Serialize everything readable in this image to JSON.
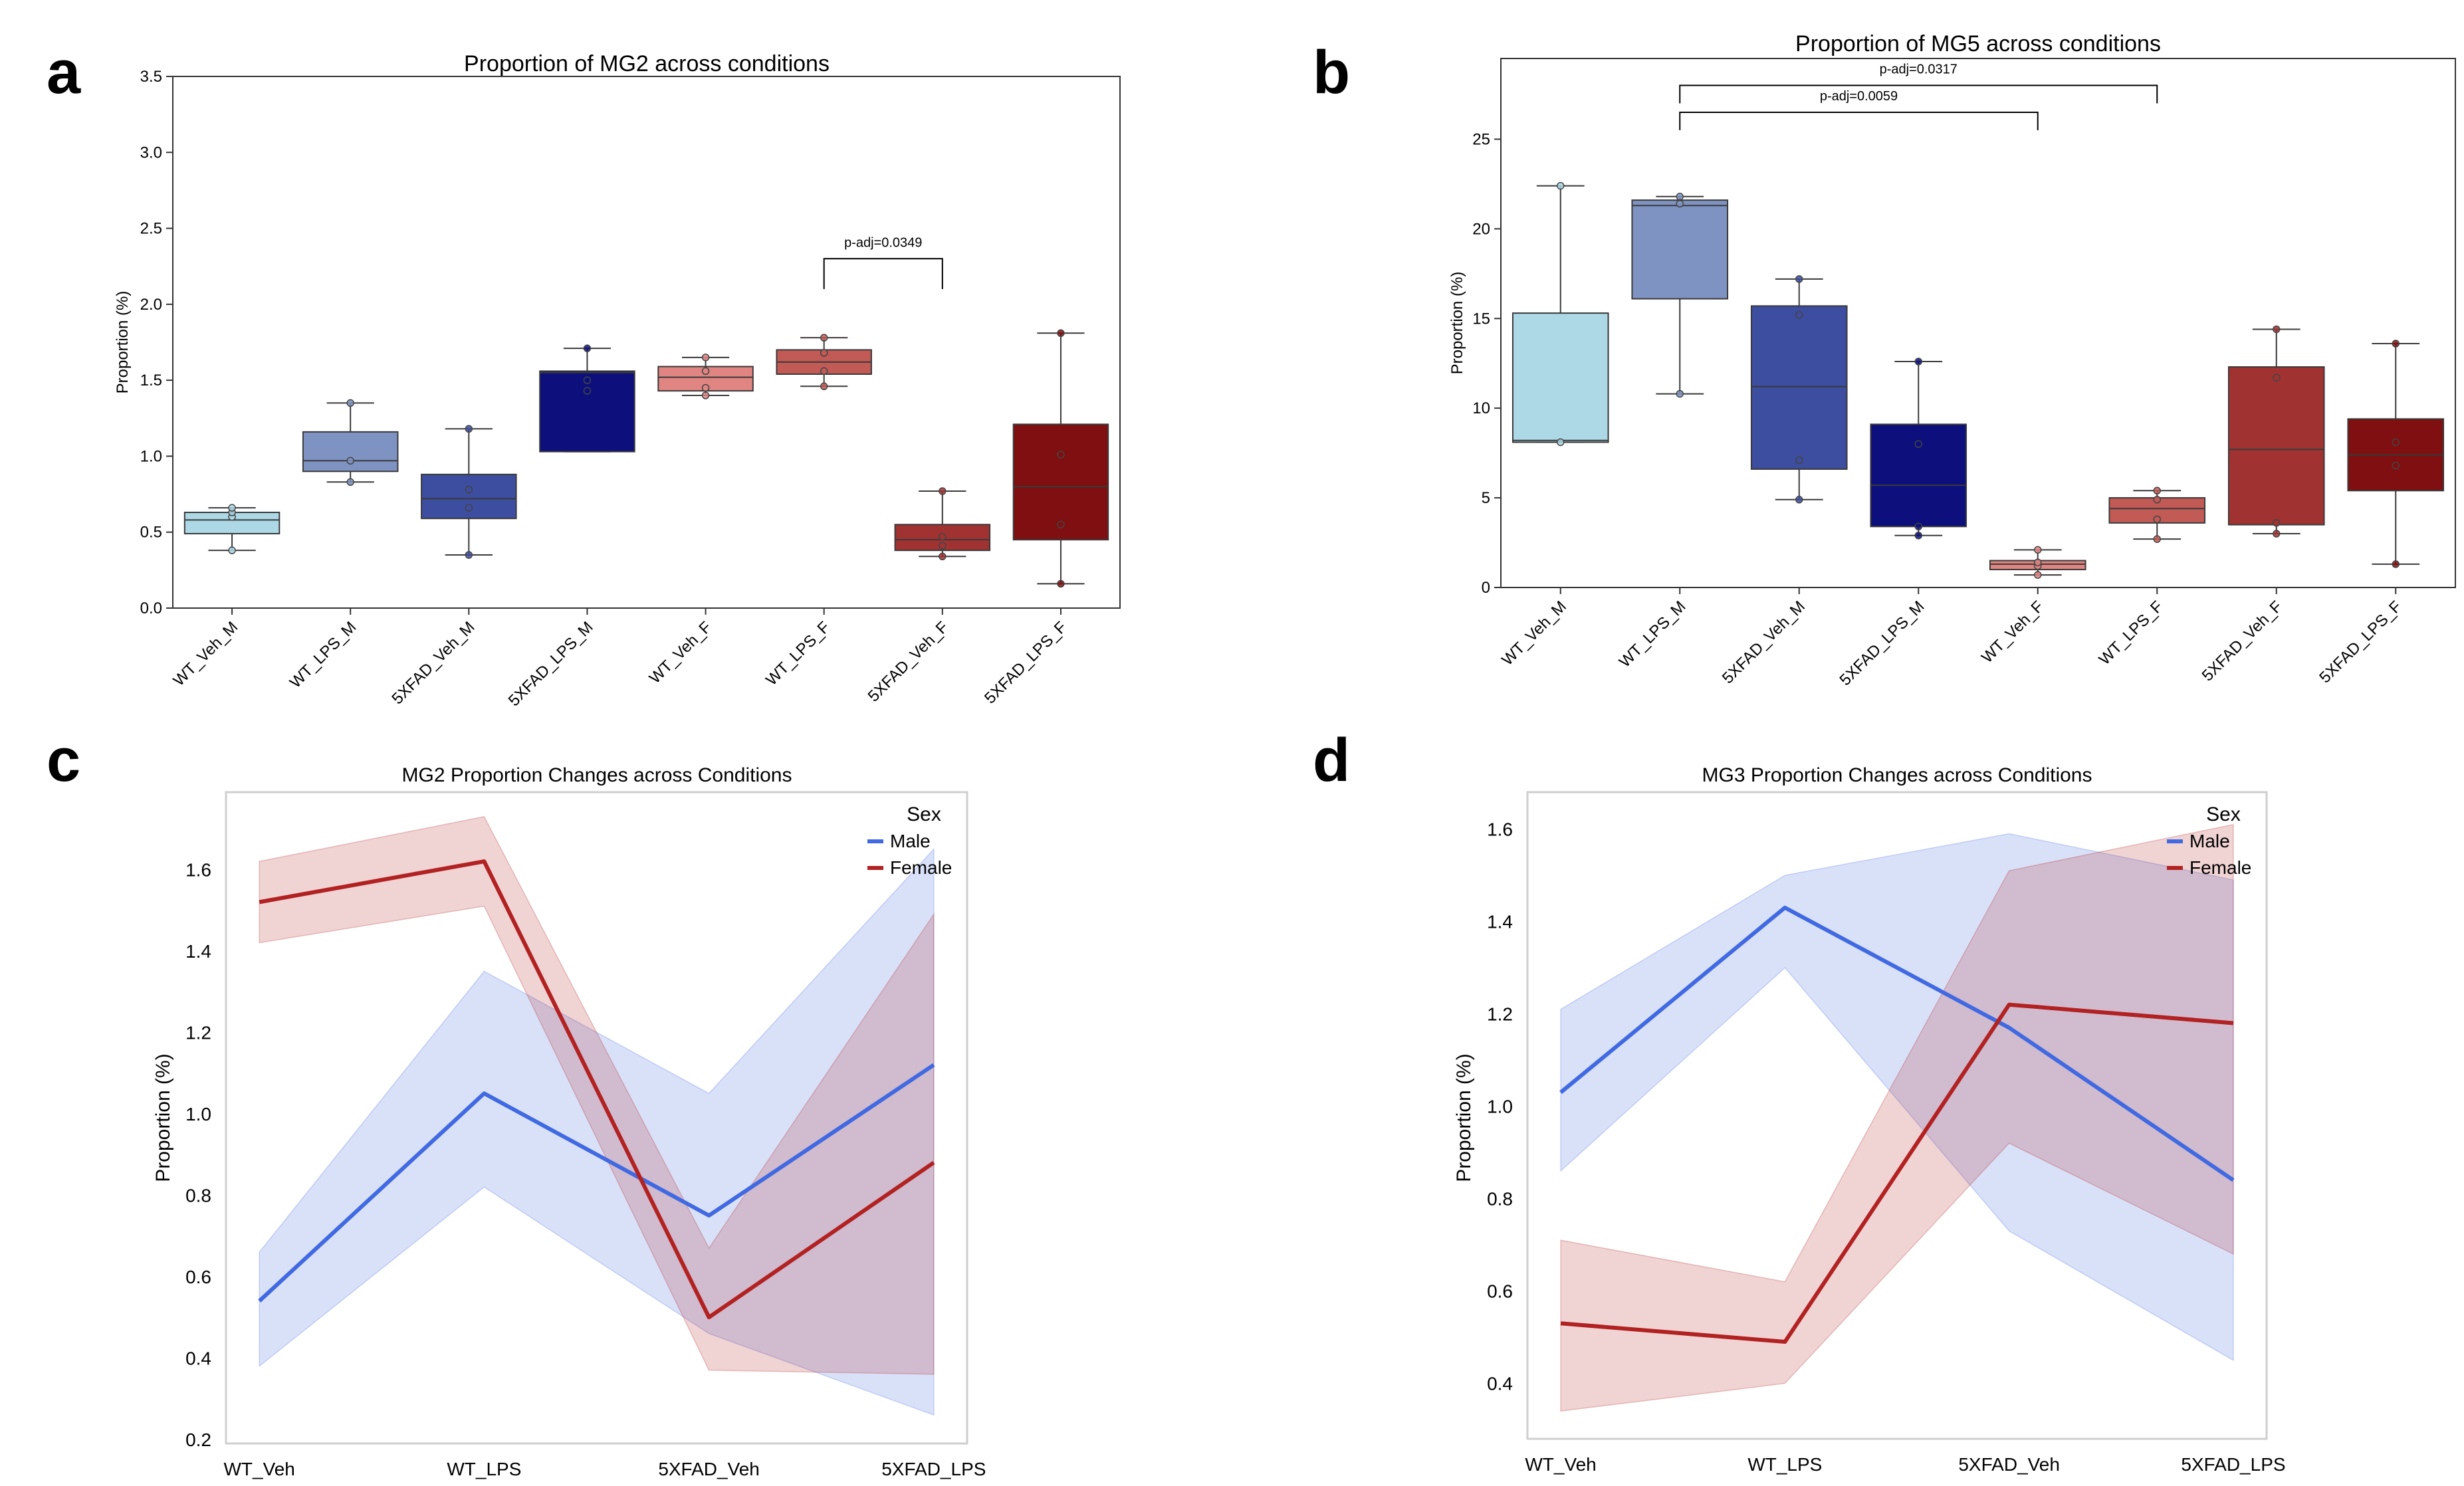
{
  "panels": {
    "a": {
      "letter": "a",
      "chart_data": {
        "type": "box",
        "title": "Proportion of MG2 across conditions",
        "xlabel": "",
        "ylabel": "Proportion (%)",
        "ylim": [
          0,
          3.5
        ],
        "yticks": [
          0.0,
          0.5,
          1.0,
          1.5,
          2.0,
          2.5,
          3.0,
          3.5
        ],
        "ytick_labels": [
          "0.0",
          "0.5",
          "1.0",
          "1.5",
          "2.0",
          "2.5",
          "3.0",
          "3.5"
        ],
        "categories": [
          "WT_Veh_M",
          "WT_LPS_M",
          "5XFAD_Veh_M",
          "5XFAD_LPS_M",
          "WT_Veh_F",
          "WT_LPS_F",
          "5XFAD_Veh_F",
          "5XFAD_LPS_F"
        ],
        "colors": [
          "#add8e6",
          "#7f93c2",
          "#3d4da0",
          "#0c0f7c",
          "#e08582",
          "#c25a56",
          "#a03232",
          "#7f0f10"
        ],
        "boxes": [
          {
            "q1": 0.49,
            "median": 0.58,
            "q3": 0.63,
            "whisker_low": 0.38,
            "whisker_high": 0.66,
            "points": [
              0.38,
              0.6,
              0.63,
              0.66
            ]
          },
          {
            "q1": 0.9,
            "median": 0.97,
            "q3": 1.16,
            "whisker_low": 0.83,
            "whisker_high": 1.35,
            "points": [
              0.83,
              0.97,
              1.35
            ]
          },
          {
            "q1": 0.59,
            "median": 0.72,
            "q3": 0.88,
            "whisker_low": 0.35,
            "whisker_high": 1.18,
            "points": [
              0.35,
              0.66,
              0.78,
              1.18
            ]
          },
          {
            "q1": 1.03,
            "median": 1.55,
            "q3": 1.56,
            "whisker_low": 1.03,
            "whisker_high": 1.71,
            "points": [
              1.43,
              1.5,
              1.71
            ]
          },
          {
            "q1": 1.43,
            "median": 1.52,
            "q3": 1.59,
            "whisker_low": 1.4,
            "whisker_high": 1.65,
            "points": [
              1.4,
              1.45,
              1.56,
              1.65
            ]
          },
          {
            "q1": 1.54,
            "median": 1.62,
            "q3": 1.7,
            "whisker_low": 1.46,
            "whisker_high": 1.78,
            "points": [
              1.46,
              1.56,
              1.68,
              1.78
            ]
          },
          {
            "q1": 0.38,
            "median": 0.45,
            "q3": 0.55,
            "whisker_low": 0.34,
            "whisker_high": 0.77,
            "points": [
              0.34,
              0.41,
              0.47,
              0.77
            ]
          },
          {
            "q1": 0.45,
            "median": 0.8,
            "q3": 1.21,
            "whisker_low": 0.16,
            "whisker_high": 1.81,
            "points": [
              0.16,
              0.55,
              1.01,
              1.81
            ]
          }
        ],
        "annotations": [
          {
            "label": "p-adj=0.0349",
            "from": "WT_LPS_F",
            "to": "5XFAD_Veh_F",
            "y": 2.3,
            "drop": 0.2
          }
        ]
      }
    },
    "b": {
      "letter": "b",
      "chart_data": {
        "type": "box",
        "title": "Proportion of MG5 across conditions",
        "xlabel": "",
        "ylabel": "Proportion (%)",
        "ylim": [
          0,
          29.5
        ],
        "yticks": [
          0,
          5,
          10,
          15,
          20,
          25
        ],
        "ytick_labels": [
          "0",
          "5",
          "10",
          "15",
          "20",
          "25"
        ],
        "categories": [
          "WT_Veh_M",
          "WT_LPS_M",
          "5XFAD_Veh_M",
          "5XFAD_LPS_M",
          "WT_Veh_F",
          "WT_LPS_F",
          "5XFAD_Veh_F",
          "5XFAD_LPS_F"
        ],
        "colors": [
          "#add8e6",
          "#7f93c2",
          "#3d4da0",
          "#0c0f7c",
          "#e08582",
          "#c25a56",
          "#a03232",
          "#7f0f10"
        ],
        "boxes": [
          {
            "q1": 8.1,
            "median": 8.2,
            "q3": 15.3,
            "whisker_low": 8.1,
            "whisker_high": 22.4,
            "points": [
              8.1,
              22.4
            ]
          },
          {
            "q1": 16.1,
            "median": 21.3,
            "q3": 21.6,
            "whisker_low": 10.8,
            "whisker_high": 21.8,
            "points": [
              10.8,
              21.4,
              21.8
            ]
          },
          {
            "q1": 6.6,
            "median": 11.2,
            "q3": 15.7,
            "whisker_low": 4.9,
            "whisker_high": 17.2,
            "points": [
              4.9,
              7.1,
              15.2,
              17.2
            ]
          },
          {
            "q1": 3.4,
            "median": 5.7,
            "q3": 9.1,
            "whisker_low": 2.9,
            "whisker_high": 12.6,
            "points": [
              2.9,
              3.4,
              8.0,
              12.6
            ]
          },
          {
            "q1": 1.0,
            "median": 1.3,
            "q3": 1.5,
            "whisker_low": 0.7,
            "whisker_high": 2.1,
            "points": [
              0.7,
              1.2,
              1.4,
              2.1
            ]
          },
          {
            "q1": 3.6,
            "median": 4.4,
            "q3": 5.0,
            "whisker_low": 2.7,
            "whisker_high": 5.4,
            "points": [
              2.7,
              3.8,
              4.9,
              5.4
            ]
          },
          {
            "q1": 3.5,
            "median": 7.7,
            "q3": 12.3,
            "whisker_low": 3.0,
            "whisker_high": 14.4,
            "points": [
              3.0,
              3.6,
              11.7,
              14.4
            ]
          },
          {
            "q1": 5.4,
            "median": 7.4,
            "q3": 9.4,
            "whisker_low": 1.3,
            "whisker_high": 13.6,
            "points": [
              1.3,
              6.8,
              8.1,
              13.6
            ]
          }
        ],
        "annotations": [
          {
            "label": "p-adj=0.0317",
            "from": "WT_LPS_M",
            "to": "WT_LPS_F",
            "y": 28.0,
            "drop": 1.0
          },
          {
            "label": "p-adj=0.0059",
            "from": "WT_LPS_M",
            "to": "WT_Veh_F",
            "y": 26.5,
            "drop": 1.0
          }
        ]
      }
    },
    "c": {
      "letter": "c",
      "chart_data": {
        "type": "line",
        "title": "MG2 Proportion Changes across Conditions",
        "xlabel": "",
        "ylabel": "Proportion (%)",
        "ylim": [
          0.19,
          1.79
        ],
        "yticks": [
          0.2,
          0.4,
          0.6,
          0.8,
          1.0,
          1.2,
          1.4,
          1.6
        ],
        "ytick_labels": [
          "0.2",
          "0.4",
          "0.6",
          "0.8",
          "1.0",
          "1.2",
          "1.4",
          "1.6"
        ],
        "categories": [
          "WT_Veh",
          "WT_LPS",
          "5XFAD_Veh",
          "5XFAD_LPS"
        ],
        "legend": {
          "title": "Sex",
          "placement": "top-right"
        },
        "series": [
          {
            "name": "Male",
            "color": "#4169e1",
            "values": [
              0.54,
              1.05,
              0.75,
              1.12
            ],
            "ci_low": [
              0.38,
              0.82,
              0.46,
              0.26
            ],
            "ci_high": [
              0.66,
              1.35,
              1.05,
              1.65
            ]
          },
          {
            "name": "Female",
            "color": "#b22222",
            "values": [
              1.52,
              1.62,
              0.5,
              0.88
            ],
            "ci_low": [
              1.42,
              1.51,
              0.37,
              0.36
            ],
            "ci_high": [
              1.62,
              1.73,
              0.67,
              1.49
            ]
          }
        ]
      }
    },
    "d": {
      "letter": "d",
      "chart_data": {
        "type": "line",
        "title": "MG3 Proportion Changes across Conditions",
        "xlabel": "",
        "ylabel": "Proportion (%)",
        "ylim": [
          0.28,
          1.68
        ],
        "yticks": [
          0.4,
          0.6,
          0.8,
          1.0,
          1.2,
          1.4,
          1.6
        ],
        "ytick_labels": [
          "0.4",
          "0.6",
          "0.8",
          "1.0",
          "1.2",
          "1.4",
          "1.6"
        ],
        "categories": [
          "WT_Veh",
          "WT_LPS",
          "5XFAD_Veh",
          "5XFAD_LPS"
        ],
        "legend": {
          "title": "Sex",
          "placement": "top-right"
        },
        "series": [
          {
            "name": "Male",
            "color": "#4169e1",
            "values": [
              1.03,
              1.43,
              1.17,
              0.84
            ],
            "ci_low": [
              0.86,
              1.3,
              0.73,
              0.45
            ],
            "ci_high": [
              1.21,
              1.5,
              1.59,
              1.49
            ]
          },
          {
            "name": "Female",
            "color": "#b22222",
            "values": [
              0.53,
              0.49,
              1.22,
              1.18
            ],
            "ci_low": [
              0.34,
              0.4,
              0.92,
              0.68
            ],
            "ci_high": [
              0.71,
              0.62,
              1.51,
              1.61
            ]
          }
        ]
      }
    }
  }
}
